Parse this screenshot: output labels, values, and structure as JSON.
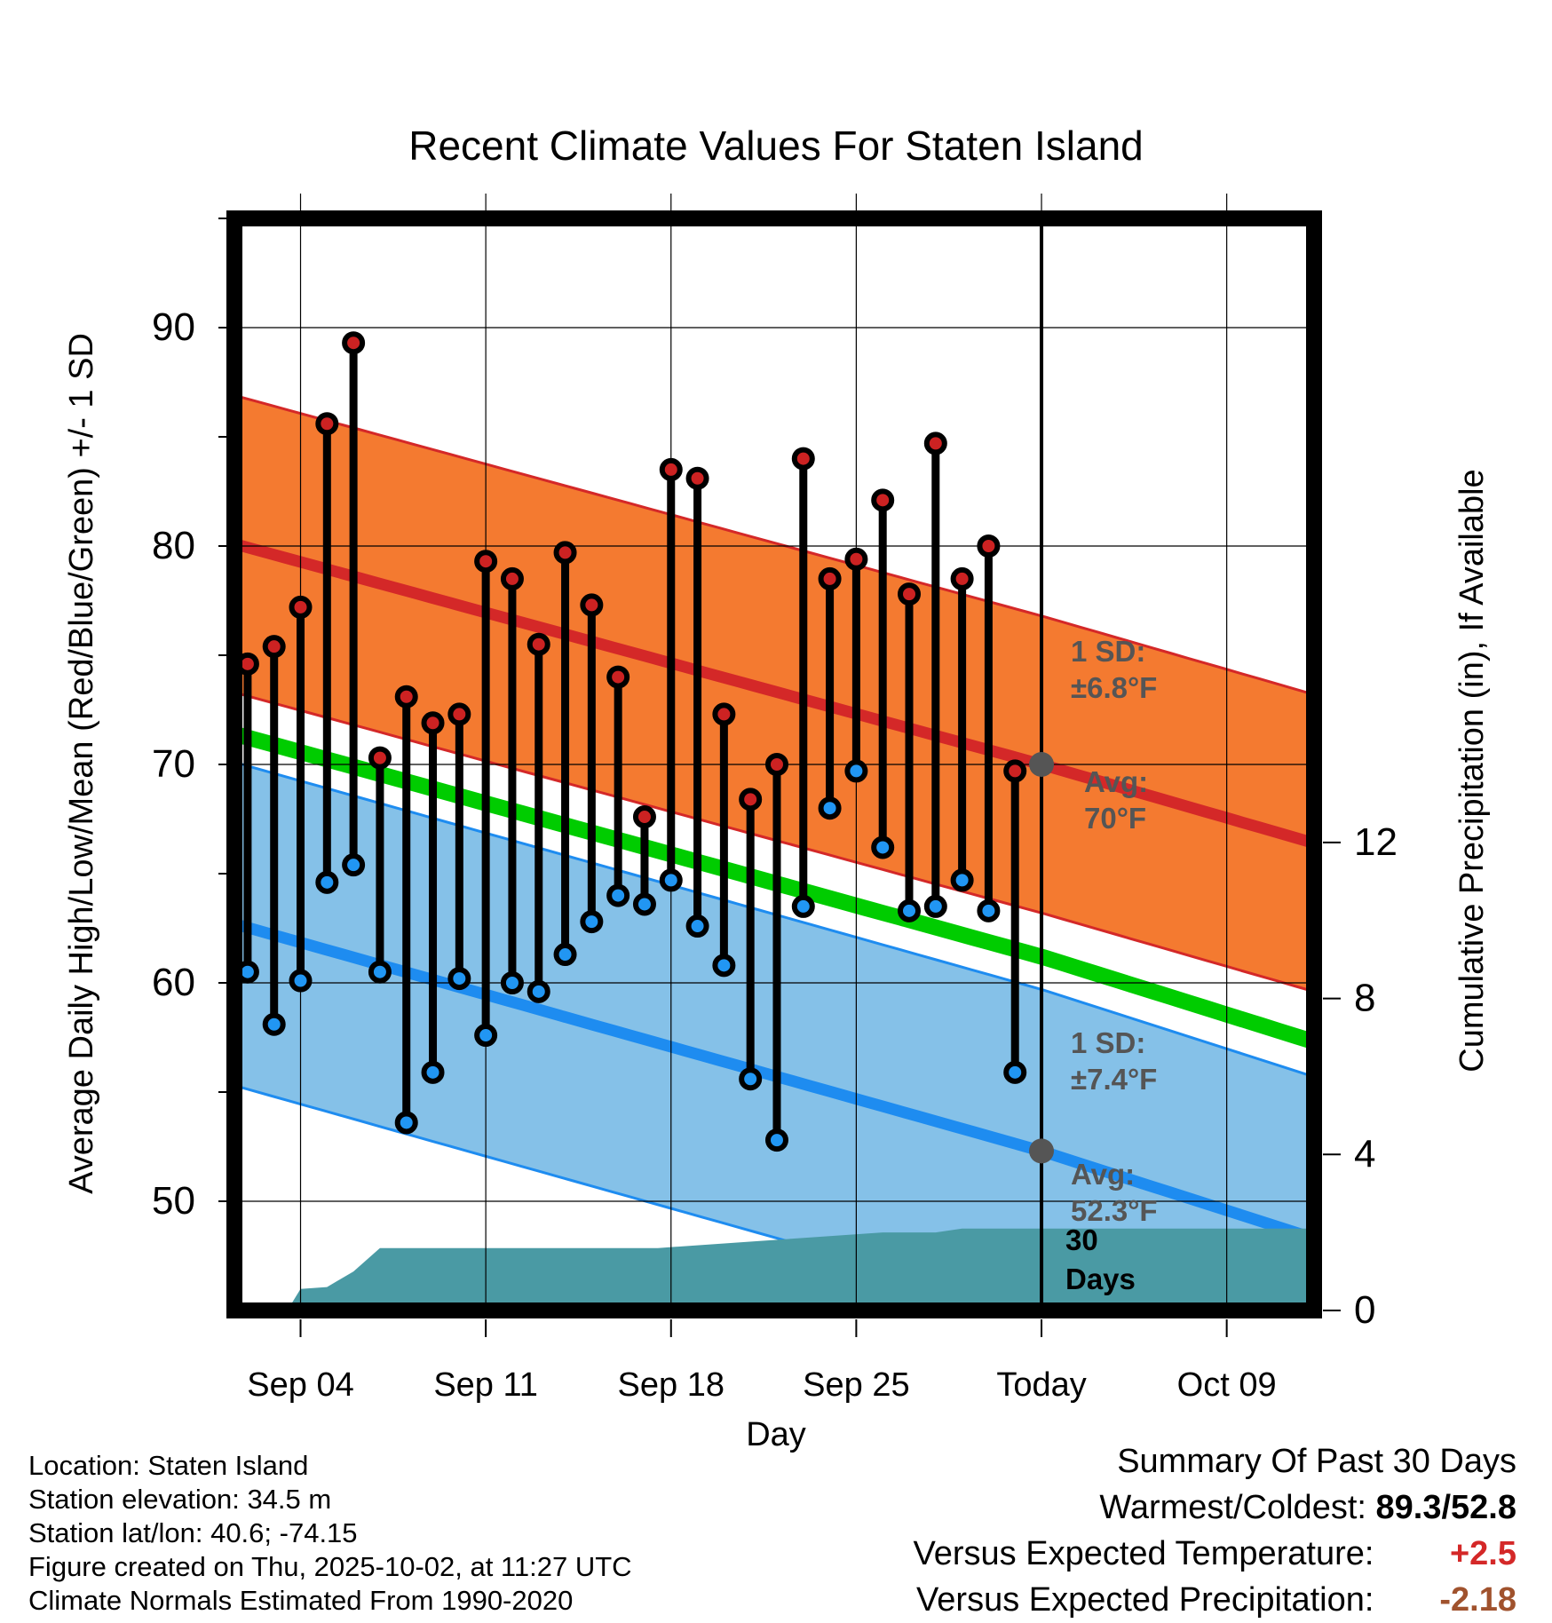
{
  "chart_data": {
    "type": "line",
    "title": "Recent Climate Values For Staten Island",
    "xlabel": "Day",
    "ylabel": "Average Daily High/Low/Mean (Red/Blue/Green) +/- 1 SD",
    "y2label": "Cumulative Precipitation (in), If Available",
    "xlim": [
      -2.5,
      38.3
    ],
    "ylim": [
      45,
      95
    ],
    "y2lim": [
      0,
      28
    ],
    "x_ticks": [
      {
        "day": 0,
        "label": "Sep 04"
      },
      {
        "day": 7,
        "label": "Sep 11"
      },
      {
        "day": 14,
        "label": "Sep 18"
      },
      {
        "day": 21,
        "label": "Sep 25"
      },
      {
        "day": 28,
        "label": "Today"
      },
      {
        "day": 35,
        "label": "Oct 09"
      }
    ],
    "y_ticks": [
      50,
      60,
      70,
      80,
      90
    ],
    "y2_ticks": [
      0,
      4,
      8,
      12
    ],
    "days": [
      -2,
      -1,
      0,
      1,
      2,
      3,
      4,
      5,
      6,
      7,
      8,
      9,
      10,
      11,
      12,
      13,
      14,
      15,
      16,
      17,
      18,
      19,
      20,
      21,
      22,
      23,
      24,
      25,
      26,
      27
    ],
    "daily_high": [
      74.6,
      75.4,
      77.2,
      85.6,
      89.3,
      70.3,
      73.1,
      71.9,
      72.3,
      79.3,
      78.5,
      75.5,
      79.7,
      77.3,
      74.0,
      67.6,
      83.5,
      83.1,
      72.3,
      68.4,
      70.0,
      84.0,
      78.5,
      79.4,
      82.1,
      77.8,
      84.7,
      78.5,
      80.0,
      69.7
    ],
    "daily_low": [
      60.5,
      58.1,
      60.1,
      64.6,
      65.4,
      60.5,
      53.6,
      55.9,
      60.2,
      57.6,
      60.0,
      59.6,
      61.3,
      62.8,
      64.0,
      63.6,
      64.7,
      62.6,
      60.8,
      55.6,
      52.8,
      63.5,
      68.0,
      69.7,
      66.2,
      63.3,
      63.5,
      64.7,
      63.3,
      55.9
    ],
    "normal_high": {
      "x": [
        -2.5,
        28,
        38.3
      ],
      "mean": [
        80.1,
        70.0,
        66.4
      ],
      "sd": 6.8
    },
    "normal_low": {
      "x": [
        -2.5,
        28,
        38.3
      ],
      "mean": [
        62.7,
        52.3,
        48.3
      ],
      "sd": 7.4
    },
    "normal_mean": {
      "x": [
        -2.5,
        28,
        38.3
      ],
      "mean": [
        71.4,
        61.2,
        57.3
      ]
    },
    "precip_cumulative": {
      "x": [
        -2.5,
        -0.5,
        0,
        1,
        2,
        3,
        14,
        13.5,
        22,
        23,
        24,
        25,
        27,
        38.3
      ],
      "y": [
        0,
        0,
        0.55,
        0.6,
        1.0,
        1.6,
        1.6,
        1.6,
        2.0,
        2.0,
        2.0,
        2.1,
        2.1,
        2.1
      ]
    },
    "today_day": 28,
    "annotations": {
      "high_sd_1": "1 SD:",
      "high_sd_2": "±6.8°F",
      "high_avg_1": "Avg:",
      "high_avg_2": "70°F",
      "low_sd_1": "1 SD:",
      "low_sd_2": "±7.4°F",
      "low_avg_1": "Avg:",
      "low_avg_2": "52.3°F",
      "days_1": "30",
      "days_2": "Days"
    },
    "colors": {
      "high_band": "#f47a30",
      "high_line": "#d42828",
      "low_band": "#85c1e8",
      "low_line": "#1e8cf0",
      "mean_line": "#00cc00",
      "precip": "#4a9aa4",
      "high_dot": "#cc2222",
      "low_dot": "#2196f3",
      "annotation": "#555555"
    }
  },
  "info": {
    "location": "Location: Staten Island",
    "elevation": "Station elevation: 34.5 m",
    "latlon": "Station lat/lon: 40.6; -74.15",
    "created": "Figure created on Thu, 2025-10-02, at 11:27 UTC",
    "normals": "Climate Normals Estimated From 1990-2020"
  },
  "summary": {
    "heading": "Summary Of Past 30 Days",
    "warmest_label": "Warmest/Coldest:",
    "warmest_value": "89.3/52.8",
    "temp_label": "Versus Expected Temperature:",
    "temp_value": "+2.5",
    "temp_color": "#d42828",
    "precip_label": "Versus Expected Precipitation:",
    "precip_value": "-2.18",
    "precip_color": "#a0522d"
  }
}
